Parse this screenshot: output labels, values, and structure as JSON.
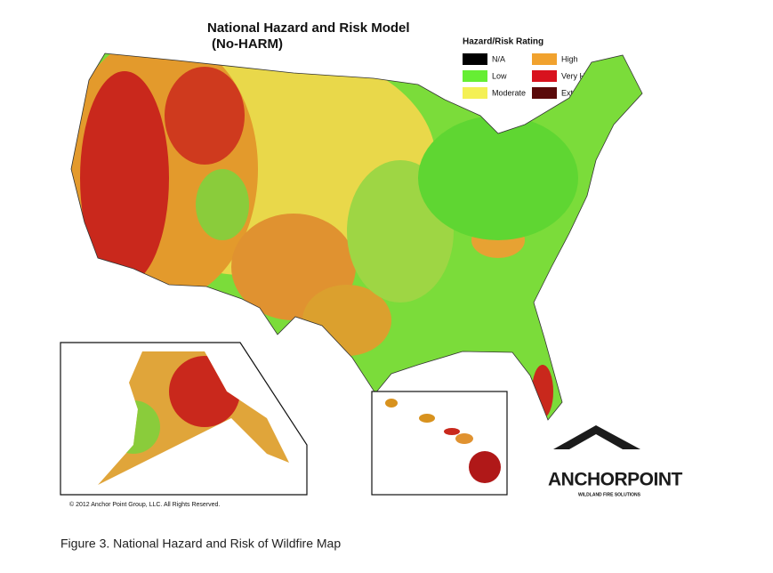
{
  "title": [
    "National Hazard and Risk Model",
    "(No-HARM)"
  ],
  "legend": {
    "title": "Hazard/Risk Rating",
    "items": [
      {
        "label": "N/A",
        "color": "#000000"
      },
      {
        "label": "Low",
        "color": "#66ee33"
      },
      {
        "label": "Moderate",
        "color": "#f4f055"
      },
      {
        "label": "High",
        "color": "#f1a22e"
      },
      {
        "label": "Very High",
        "color": "#d8121e"
      },
      {
        "label": "Extreme",
        "color": "#5a0a0a"
      }
    ]
  },
  "copyright": "© 2012 Anchor Point Group, LLC.  All Rights Reserved.",
  "logo": {
    "name": "ANCHORPOINT",
    "tagline": "WILDLAND FIRE SOLUTIONS"
  },
  "caption": "Figure 3. National Hazard and Risk of Wildfire Map"
}
